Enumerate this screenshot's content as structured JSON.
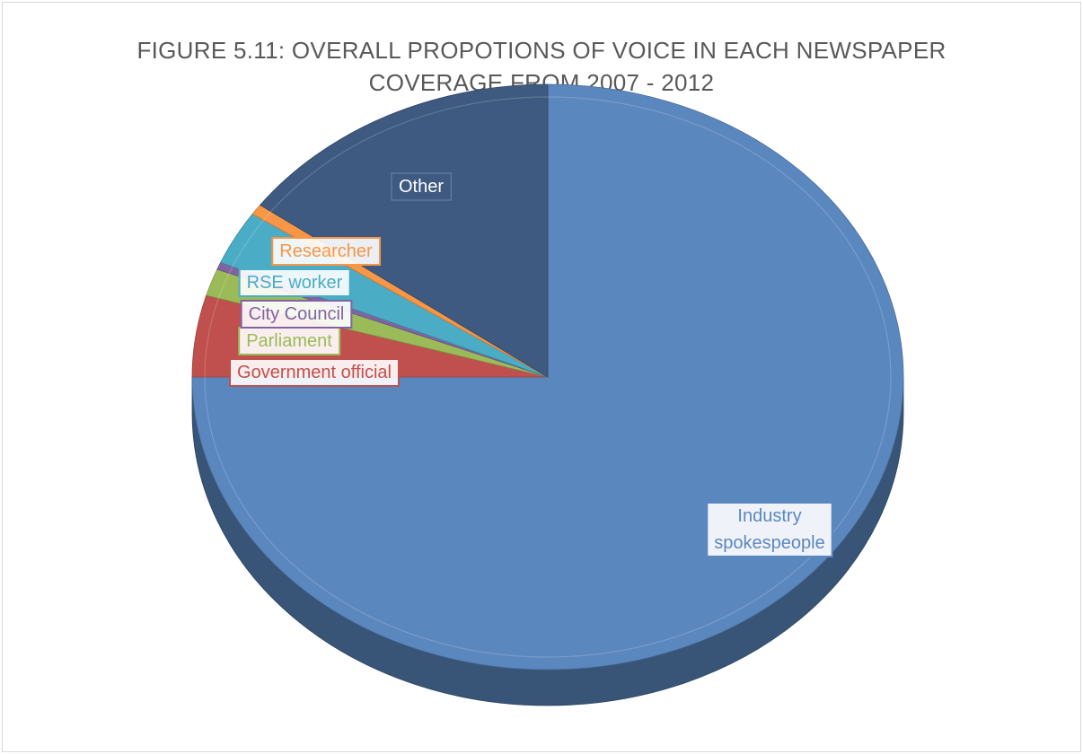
{
  "chart_data": {
    "type": "pie",
    "style": "3d",
    "title_lines": [
      "FIGURE 5.11: OVERALL PROPOTIONS OF VOICE IN EACH NEWSPAPER",
      "COVERAGE FROM 2007 - 2012"
    ],
    "slices": [
      {
        "label": "Industry spokespeople",
        "label_lines": [
          "Industry",
          "spokespeople"
        ],
        "value": 75.0,
        "color": "#5b87bf"
      },
      {
        "label": "Government official",
        "label_lines": [
          "Government official"
        ],
        "value": 4.5,
        "color": "#c0504d"
      },
      {
        "label": "Parliament",
        "label_lines": [
          "Parliament"
        ],
        "value": 1.5,
        "color": "#9bbb59"
      },
      {
        "label": "City Council",
        "label_lines": [
          "City Council"
        ],
        "value": 0.4,
        "color": "#8064a2"
      },
      {
        "label": "RSE worker",
        "label_lines": [
          "RSE worker"
        ],
        "value": 3.0,
        "color": "#4bacc6"
      },
      {
        "label": "Researcher",
        "label_lines": [
          "Researcher"
        ],
        "value": 0.6,
        "color": "#f79646"
      },
      {
        "label": "Other",
        "label_lines": [
          "Other"
        ],
        "value": 15.0,
        "color": "#3e5a80"
      }
    ],
    "legend": "none",
    "data_labels": "category names"
  }
}
